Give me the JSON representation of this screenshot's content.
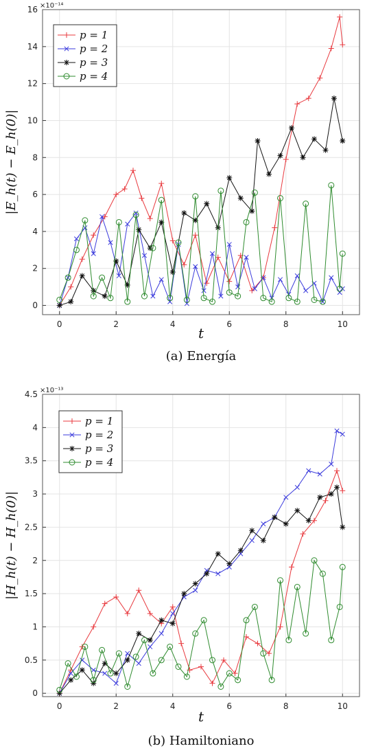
{
  "chart_data": [
    {
      "type": "line",
      "caption": "(a) Energía",
      "xlabel": "t",
      "ylabel": "|E_h(t) − E_h(0)|",
      "y_exponent": "×10⁻¹⁴",
      "xlim": [
        -0.6,
        10.6
      ],
      "ylim": [
        -0.5,
        16
      ],
      "xticks": [
        "0",
        "2",
        "4",
        "6",
        "8",
        "10"
      ],
      "yticks": [
        "0",
        "2",
        "4",
        "6",
        "8",
        "10",
        "12",
        "14",
        "16"
      ],
      "legend_position": "top-left",
      "grid": true,
      "series": [
        {
          "name": "p = 1",
          "color": "#e8383d",
          "marker": "plus",
          "x": [
            0,
            0.4,
            0.8,
            1.2,
            1.6,
            2.0,
            2.3,
            2.6,
            2.9,
            3.2,
            3.6,
            4.0,
            4.4,
            4.8,
            5.2,
            5.6,
            6.0,
            6.4,
            6.8,
            7.2,
            7.6,
            8.0,
            8.4,
            8.8,
            9.2,
            9.6,
            9.9,
            10.0
          ],
          "y": [
            0,
            1.0,
            2.5,
            3.8,
            4.8,
            6.0,
            6.3,
            7.3,
            5.8,
            4.7,
            6.6,
            3.5,
            2.2,
            3.8,
            1.2,
            2.6,
            1.3,
            2.7,
            0.8,
            1.5,
            4.2,
            7.9,
            10.9,
            11.2,
            12.3,
            13.9,
            15.6,
            14.1
          ]
        },
        {
          "name": "p = 2",
          "color": "#3b3bdc",
          "marker": "x",
          "x": [
            0,
            0.3,
            0.6,
            0.9,
            1.2,
            1.5,
            1.8,
            2.1,
            2.4,
            2.7,
            3.0,
            3.3,
            3.6,
            3.9,
            4.2,
            4.5,
            4.8,
            5.1,
            5.4,
            5.7,
            6.0,
            6.3,
            6.6,
            6.9,
            7.2,
            7.5,
            7.8,
            8.1,
            8.4,
            8.7,
            9.0,
            9.3,
            9.6,
            9.9,
            10.0
          ],
          "y": [
            0,
            1.5,
            3.6,
            4.2,
            2.8,
            4.8,
            3.4,
            1.6,
            4.4,
            5.0,
            2.7,
            0.5,
            1.4,
            0.2,
            3.3,
            0.1,
            2.1,
            0.8,
            2.8,
            0.5,
            3.3,
            1.0,
            2.6,
            0.9,
            1.5,
            0.4,
            1.4,
            0.6,
            1.6,
            0.8,
            1.2,
            0.2,
            1.5,
            0.7,
            0.9
          ]
        },
        {
          "name": "p = 3",
          "color": "#111111",
          "marker": "star",
          "x": [
            0,
            0.4,
            0.8,
            1.2,
            1.6,
            2.0,
            2.4,
            2.8,
            3.2,
            3.6,
            4.0,
            4.4,
            4.8,
            5.2,
            5.6,
            6.0,
            6.4,
            6.8,
            7.0,
            7.4,
            7.8,
            8.2,
            8.6,
            9.0,
            9.4,
            9.7,
            10.0
          ],
          "y": [
            0,
            0.2,
            1.6,
            0.8,
            0.5,
            2.4,
            1.1,
            4.1,
            3.1,
            4.5,
            1.8,
            5.0,
            4.6,
            5.5,
            4.2,
            6.9,
            5.8,
            5.1,
            8.9,
            7.1,
            8.1,
            9.6,
            8.0,
            9.0,
            8.4,
            11.2,
            8.9
          ]
        },
        {
          "name": "p = 4",
          "color": "#2e8b2e",
          "marker": "circle",
          "x": [
            0,
            0.3,
            0.6,
            0.9,
            1.2,
            1.5,
            1.8,
            2.1,
            2.4,
            2.7,
            3.0,
            3.3,
            3.6,
            3.9,
            4.2,
            4.5,
            4.8,
            5.1,
            5.4,
            5.7,
            6.0,
            6.3,
            6.6,
            6.9,
            7.2,
            7.5,
            7.8,
            8.1,
            8.4,
            8.7,
            9.0,
            9.3,
            9.6,
            9.9,
            10.0
          ],
          "y": [
            0.3,
            1.5,
            3.0,
            4.6,
            0.5,
            1.5,
            0.4,
            4.5,
            0.2,
            4.9,
            0.5,
            3.1,
            5.7,
            0.4,
            3.4,
            0.3,
            5.9,
            0.4,
            0.2,
            6.2,
            0.7,
            0.5,
            4.5,
            6.1,
            0.4,
            0.2,
            5.8,
            0.4,
            0.2,
            5.5,
            0.3,
            0.2,
            6.5,
            0.9,
            2.8
          ]
        }
      ]
    },
    {
      "type": "line",
      "caption": "(b) Hamiltoniano",
      "xlabel": "t",
      "ylabel": "|H_h(t) − H_h(0)|",
      "y_exponent": "×10⁻¹³",
      "xlim": [
        -0.6,
        10.6
      ],
      "ylim": [
        -0.05,
        4.5
      ],
      "xticks": [
        "0",
        "2",
        "4",
        "6",
        "8",
        "10"
      ],
      "yticks": [
        "0",
        "0.5",
        "1",
        "1.5",
        "2",
        "2.5",
        "3",
        "3.5",
        "4",
        "4.5"
      ],
      "legend_position": "top-left",
      "grid": true,
      "series": [
        {
          "name": "p = 1",
          "color": "#e8383d",
          "marker": "plus",
          "x": [
            0,
            0.4,
            0.8,
            1.2,
            1.6,
            2.0,
            2.4,
            2.8,
            3.2,
            3.6,
            4.0,
            4.3,
            4.6,
            5.0,
            5.4,
            5.8,
            6.2,
            6.6,
            7.0,
            7.4,
            7.8,
            8.2,
            8.6,
            9.0,
            9.4,
            9.8,
            10.0
          ],
          "y": [
            0,
            0.35,
            0.7,
            1.0,
            1.35,
            1.45,
            1.2,
            1.55,
            1.2,
            1.05,
            1.3,
            0.75,
            0.35,
            0.4,
            0.15,
            0.5,
            0.3,
            0.85,
            0.75,
            0.6,
            1.0,
            1.9,
            2.4,
            2.6,
            2.9,
            3.35,
            3.05
          ]
        },
        {
          "name": "p = 2",
          "color": "#3b3bdc",
          "marker": "x",
          "x": [
            0,
            0.4,
            0.8,
            1.2,
            1.6,
            2.0,
            2.4,
            2.8,
            3.2,
            3.6,
            4.0,
            4.4,
            4.8,
            5.2,
            5.6,
            6.0,
            6.4,
            6.8,
            7.2,
            7.6,
            8.0,
            8.4,
            8.8,
            9.2,
            9.6,
            9.8,
            10.0
          ],
          "y": [
            0,
            0.3,
            0.5,
            0.35,
            0.3,
            0.15,
            0.6,
            0.45,
            0.7,
            0.9,
            1.2,
            1.45,
            1.55,
            1.85,
            1.8,
            1.9,
            2.1,
            2.3,
            2.55,
            2.65,
            2.95,
            3.1,
            3.35,
            3.3,
            3.45,
            3.95,
            3.9
          ]
        },
        {
          "name": "p = 3",
          "color": "#111111",
          "marker": "star",
          "x": [
            0,
            0.4,
            0.8,
            1.2,
            1.6,
            2.0,
            2.4,
            2.8,
            3.2,
            3.6,
            4.0,
            4.4,
            4.8,
            5.2,
            5.6,
            6.0,
            6.4,
            6.8,
            7.2,
            7.6,
            8.0,
            8.4,
            8.8,
            9.2,
            9.6,
            9.8,
            10.0
          ],
          "y": [
            0,
            0.2,
            0.35,
            0.15,
            0.45,
            0.3,
            0.5,
            0.9,
            0.8,
            1.1,
            1.05,
            1.5,
            1.65,
            1.8,
            2.1,
            1.95,
            2.15,
            2.45,
            2.3,
            2.65,
            2.55,
            2.75,
            2.6,
            2.95,
            3.0,
            3.1,
            2.5
          ]
        },
        {
          "name": "p = 4",
          "color": "#2e8b2e",
          "marker": "circle",
          "x": [
            0,
            0.3,
            0.6,
            0.9,
            1.2,
            1.5,
            1.8,
            2.1,
            2.4,
            2.7,
            3.0,
            3.3,
            3.6,
            3.9,
            4.2,
            4.5,
            4.8,
            5.1,
            5.4,
            5.7,
            6.0,
            6.3,
            6.6,
            6.9,
            7.2,
            7.5,
            7.8,
            8.1,
            8.4,
            8.7,
            9.0,
            9.3,
            9.6,
            9.9,
            10.0
          ],
          "y": [
            0.05,
            0.45,
            0.25,
            0.7,
            0.2,
            0.65,
            0.3,
            0.6,
            0.1,
            0.55,
            0.8,
            0.3,
            0.5,
            0.7,
            0.4,
            0.25,
            0.9,
            1.1,
            0.5,
            0.1,
            0.3,
            0.2,
            1.1,
            1.3,
            0.6,
            0.2,
            1.7,
            0.8,
            1.6,
            0.9,
            2.0,
            1.8,
            0.8,
            1.3,
            1.9
          ]
        }
      ]
    }
  ]
}
